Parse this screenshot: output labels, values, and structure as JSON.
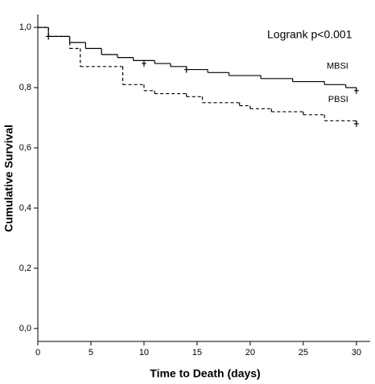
{
  "chart_data": {
    "type": "step",
    "xlabel": "Time to Death (days)",
    "ylabel": "Cumulative Survival",
    "annotation": "Logrank p<0.001",
    "xlim": [
      0,
      31.3
    ],
    "ylim": [
      -0.043,
      1.043
    ],
    "xticks": [
      0,
      5,
      10,
      15,
      20,
      25,
      30
    ],
    "yticks": [
      {
        "value": 0,
        "label": "0,0"
      },
      {
        "value": 0.2,
        "label": "0,2"
      },
      {
        "value": 0.4,
        "label": "0,4"
      },
      {
        "value": 0.6,
        "label": "0,6"
      },
      {
        "value": 0.8,
        "label": "0,8"
      },
      {
        "value": 1,
        "label": "1,0"
      }
    ],
    "series": [
      {
        "name": "MBSI",
        "color": "#000000",
        "dashed": false,
        "x": [
          0,
          1,
          3,
          4.5,
          6,
          7.5,
          9,
          11,
          12.5,
          14,
          16,
          18,
          21,
          24,
          27,
          29,
          30
        ],
        "values": [
          1.0,
          0.97,
          0.95,
          0.93,
          0.91,
          0.9,
          0.89,
          0.88,
          0.87,
          0.86,
          0.85,
          0.84,
          0.83,
          0.82,
          0.81,
          0.8,
          0.79
        ],
        "censor_x": [
          1,
          10,
          14,
          30
        ],
        "censor_values": [
          0.97,
          0.88,
          0.86,
          0.79
        ]
      },
      {
        "name": "PBSI",
        "color": "#000000",
        "dashed": true,
        "x": [
          0,
          1,
          3,
          4,
          8,
          10,
          11,
          14,
          15.5,
          19,
          20,
          22,
          25,
          27,
          30
        ],
        "values": [
          1.0,
          0.97,
          0.93,
          0.87,
          0.81,
          0.79,
          0.78,
          0.77,
          0.75,
          0.74,
          0.73,
          0.72,
          0.71,
          0.69,
          0.68
        ],
        "censor_x": [
          30
        ],
        "censor_values": [
          0.68
        ]
      }
    ]
  }
}
